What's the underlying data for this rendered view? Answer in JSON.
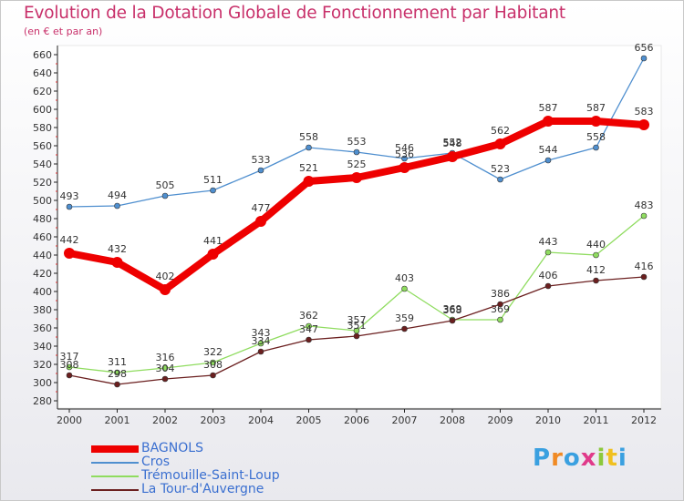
{
  "chart_data": {
    "type": "line",
    "title": "Evolution de la Dotation Globale de Fonctionnement par Habitant",
    "subtitle": "(en € et par an)",
    "xlabel": "",
    "ylabel": "",
    "ylim": [
      280,
      660
    ],
    "ytick_step": 20,
    "grid": false,
    "x": [
      "2000",
      "2001",
      "2002",
      "2003",
      "2004",
      "2005",
      "2006",
      "2007",
      "2008",
      "2009",
      "2010",
      "2011",
      "2012"
    ],
    "series": [
      {
        "name": "BAGNOLS",
        "color": "#ee0000",
        "values": [
          442,
          432,
          402,
          441,
          477,
          521,
          525,
          536,
          548,
          562,
          587,
          587,
          583
        ]
      },
      {
        "name": "Cros",
        "color": "#4f8fcf",
        "values": [
          493,
          494,
          505,
          511,
          533,
          558,
          553,
          546,
          552,
          523,
          544,
          558,
          656
        ]
      },
      {
        "name": "Trémouille-Saint-Loup",
        "color": "#8fdc5f",
        "values": [
          317,
          311,
          316,
          322,
          343,
          362,
          357,
          403,
          369,
          369,
          443,
          440,
          483
        ]
      },
      {
        "name": "La Tour-d'Auvergne",
        "color": "#6b1f1f",
        "values": [
          308,
          298,
          304,
          308,
          334,
          347,
          351,
          359,
          368,
          386,
          406,
          412,
          416
        ]
      }
    ],
    "legend": "bottom-left"
  },
  "logo": {
    "letters": [
      "P",
      "r",
      "o",
      "x",
      "i",
      "t",
      "i"
    ],
    "colors": [
      "#3aa0e0",
      "#f08a24",
      "#3aa0e0",
      "#e03a8a",
      "#8cc83c",
      "#f0c020",
      "#3aa0e0"
    ]
  }
}
